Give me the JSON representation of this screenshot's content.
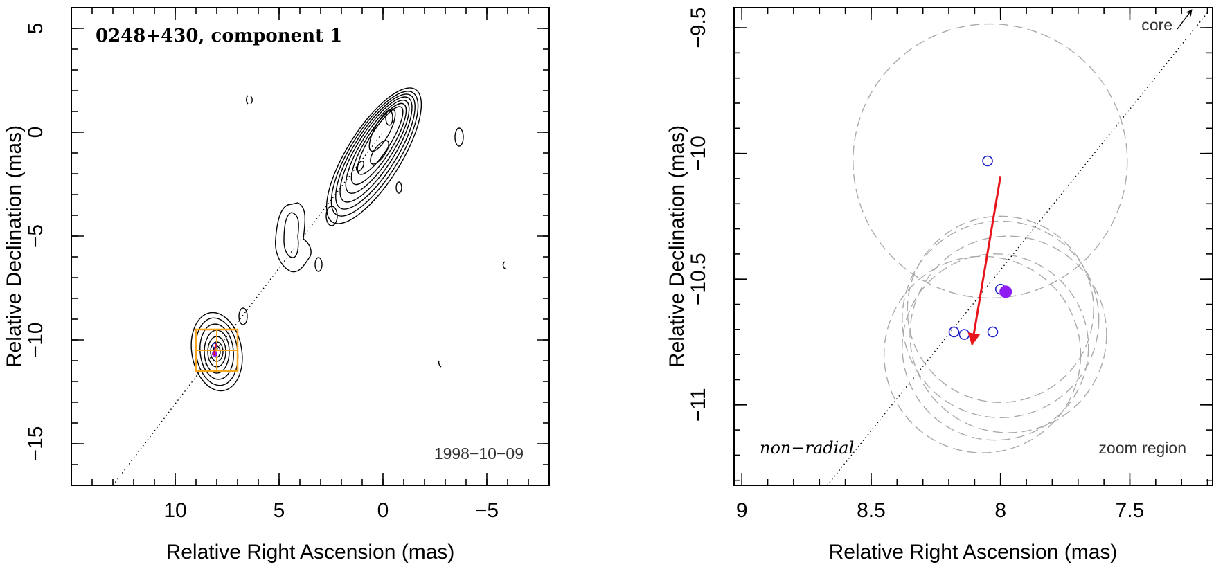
{
  "chart_data": [
    {
      "type": "scatter",
      "panel": "left",
      "title": "0248+430, component 1",
      "epoch": "1998−10−09",
      "xlabel": "Relative Right Ascension (mas)",
      "ylabel": "Relative Declination (mas)",
      "xlim": [
        15,
        -8
      ],
      "ylim": [
        -17,
        6
      ],
      "xticks": [
        {
          "v": 10,
          "t": "10"
        },
        {
          "v": 5,
          "t": "5"
        },
        {
          "v": 0,
          "t": "0"
        },
        {
          "v": -5,
          "t": "−5"
        }
      ],
      "yticks": [
        {
          "v": 5,
          "t": "5"
        },
        {
          "v": 0,
          "t": "0"
        },
        {
          "v": -5,
          "t": "−5"
        },
        {
          "v": -10,
          "t": "−10"
        },
        {
          "v": -15,
          "t": "−15"
        }
      ],
      "jet_axis": [
        [
          13,
          -17
        ],
        [
          0,
          0
        ]
      ],
      "component_position": [
        8.1,
        -10.6
      ],
      "zoom_box": [
        9,
        -11.5,
        7,
        -9.5
      ],
      "colors": {
        "contours": "#000000",
        "zoom_box": "#f5a51d",
        "arrow": "#e8131b",
        "points": "#2323cc",
        "filled": "#8f1cf0"
      }
    },
    {
      "type": "scatter",
      "panel": "right",
      "xlabel": "Relative Right Ascension (mas)",
      "ylabel": "Relative Declination (mas)",
      "xlim": [
        9.03,
        7.18
      ],
      "ylim": [
        -11.32,
        -9.42
      ],
      "xticks": [
        {
          "v": 9,
          "t": "9"
        },
        {
          "v": 8.5,
          "t": "8.5"
        },
        {
          "v": 8,
          "t": "8"
        },
        {
          "v": 7.5,
          "t": "7.5"
        }
      ],
      "yticks": [
        {
          "v": -9.5,
          "t": "−9.5"
        },
        {
          "v": -10,
          "t": "−10"
        },
        {
          "v": -10.5,
          "t": "−10.5"
        },
        {
          "v": -11,
          "t": "−11"
        }
      ],
      "core_label": "core",
      "motion_label": "non−radial",
      "region_label": "zoom region",
      "jet_axis": [
        [
          8.67,
          -11.32
        ],
        [
          7.2,
          -9.44
        ]
      ],
      "points": [
        {
          "x": 8.05,
          "y": -10.03
        },
        {
          "x": 8.0,
          "y": -10.54
        },
        {
          "x": 8.18,
          "y": -10.71
        },
        {
          "x": 8.14,
          "y": -10.72
        },
        {
          "x": 8.03,
          "y": -10.71
        }
      ],
      "filled_point": {
        "x": 7.98,
        "y": -10.55
      },
      "velocity_arrow": {
        "from": [
          8.0,
          -10.09
        ],
        "to": [
          8.11,
          -10.76
        ]
      },
      "beam_circles": [
        {
          "x": 8.04,
          "y": -10.03,
          "r": 0.53
        },
        {
          "x": 8.0,
          "y": -10.62,
          "r": 0.36
        },
        {
          "x": 8.0,
          "y": -10.66,
          "r": 0.38
        },
        {
          "x": 7.97,
          "y": -10.72,
          "r": 0.38
        },
        {
          "x": 8.02,
          "y": -10.77,
          "r": 0.36
        },
        {
          "x": 8.07,
          "y": -10.8,
          "r": 0.38
        }
      ],
      "colors": {
        "arrow": "#e8131b",
        "points": "#2323cc",
        "filled": "#8f1cf0",
        "beams": "#aaaaaa"
      }
    }
  ]
}
